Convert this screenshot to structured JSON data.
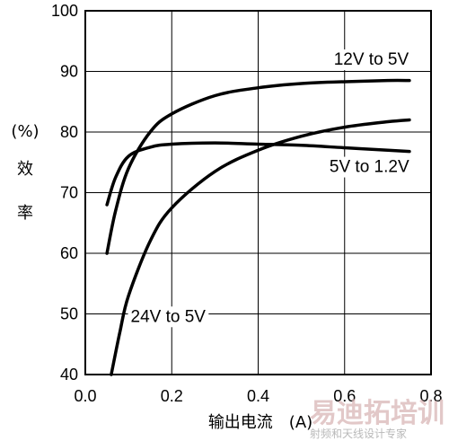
{
  "chart_data": {
    "type": "line",
    "title": "",
    "xlabel": "输出电流　(A)",
    "ylabel_parts": [
      "(%)",
      "效",
      "率"
    ],
    "xlim": [
      0.0,
      0.8
    ],
    "ylim": [
      40,
      100
    ],
    "xticks": [
      "0.0",
      "0.2",
      "0.4",
      "0.6",
      "0.8"
    ],
    "yticks": [
      "40",
      "50",
      "60",
      "70",
      "80",
      "90",
      "100"
    ],
    "grid": true,
    "series": [
      {
        "name": "12V to 5V",
        "x": [
          0.05,
          0.07,
          0.1,
          0.15,
          0.2,
          0.3,
          0.4,
          0.5,
          0.6,
          0.7,
          0.75
        ],
        "y": [
          60,
          67,
          74,
          80,
          83,
          86,
          87.3,
          88,
          88.3,
          88.5,
          88.5
        ]
      },
      {
        "name": "5V to 1.2V",
        "x": [
          0.05,
          0.07,
          0.1,
          0.15,
          0.2,
          0.3,
          0.4,
          0.5,
          0.6,
          0.7,
          0.75
        ],
        "y": [
          68,
          72.5,
          76,
          77.5,
          78,
          78.2,
          78,
          77.8,
          77.4,
          77,
          76.8
        ]
      },
      {
        "name": "24V to 5V",
        "x": [
          0.06,
          0.08,
          0.1,
          0.15,
          0.2,
          0.3,
          0.4,
          0.5,
          0.6,
          0.7,
          0.75
        ],
        "y": [
          40,
          47,
          53,
          62,
          67.5,
          73.5,
          77,
          79.3,
          80.8,
          81.7,
          82
        ]
      }
    ],
    "watermark": {
      "main": "易迪拓培训",
      "sub": "射频和天线设计专家"
    }
  }
}
